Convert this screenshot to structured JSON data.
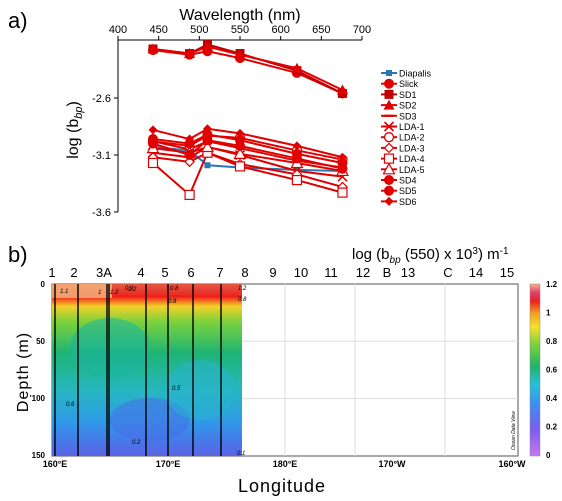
{
  "panel_labels": {
    "a": "a)",
    "b": "b)"
  },
  "chart_data": [
    {
      "type": "line",
      "panel": "a",
      "title": "",
      "xlabel": "Wavelength (nm)",
      "ylabel": "log (b",
      "ylabel_sub": "bp",
      "ylabel_suffix": ")",
      "x_axis_position": "top",
      "xlim": [
        400,
        700
      ],
      "ylim": [
        -3.6,
        -2.1
      ],
      "y_inverted_display": false,
      "xticks": [
        400,
        450,
        500,
        550,
        600,
        650,
        700
      ],
      "yticks": [
        -3.6,
        -3.1,
        -2.6
      ],
      "ytick_labels": [
        "-3.6",
        "-3.1",
        "-2.6"
      ],
      "x": [
        443,
        488,
        510,
        550,
        620,
        676
      ],
      "legend_position": "right",
      "series": [
        {
          "name": "Diapalis",
          "color": "#2e75b6",
          "marker": "square-line",
          "values": [
            -3.03,
            -3.06,
            -3.19,
            -3.21,
            -3.23,
            -3.24
          ]
        },
        {
          "name": "Slick",
          "color": "#e00000",
          "marker": "circle",
          "values": [
            -2.18,
            -2.22,
            -2.19,
            -2.25,
            -2.38,
            -2.56
          ]
        },
        {
          "name": "SD1",
          "color": "#c00000",
          "marker": "square",
          "values": [
            -2.17,
            -2.21,
            -2.13,
            -2.21,
            -2.36,
            -2.56
          ]
        },
        {
          "name": "SD2",
          "color": "#e00000",
          "marker": "triangle",
          "values": [
            -2.17,
            -2.21,
            -2.15,
            -2.22,
            -2.34,
            -2.53
          ]
        },
        {
          "name": "SD3",
          "color": "#e00000",
          "marker": "dash",
          "values": [
            -2.98,
            -3.05,
            -2.98,
            -3.04,
            -3.15,
            -3.21
          ]
        },
        {
          "name": "LDA-1",
          "color": "#e00000",
          "marker": "x",
          "values": [
            -3.08,
            -3.12,
            -3.03,
            -3.1,
            -3.24,
            -3.29
          ]
        },
        {
          "name": "LDA-2",
          "color": "#e00000",
          "marker": "circle-open",
          "values": [
            -2.98,
            -3.02,
            -2.93,
            -2.95,
            -3.06,
            -3.14
          ]
        },
        {
          "name": "LDA-3",
          "color": "#e00000",
          "marker": "diamond-open",
          "values": [
            -3.12,
            -3.16,
            -3.08,
            -3.18,
            -3.27,
            -3.38
          ]
        },
        {
          "name": "LDA-4",
          "color": "#e00000",
          "marker": "square-open",
          "values": [
            -3.17,
            -3.45,
            -3.08,
            -3.2,
            -3.32,
            -3.43
          ]
        },
        {
          "name": "LDA-5",
          "color": "#e00000",
          "marker": "triangle-open",
          "values": [
            -3.04,
            -3.08,
            -3.03,
            -3.09,
            -3.17,
            -3.24
          ]
        },
        {
          "name": "SD4",
          "color": "#e00000",
          "marker": "circle",
          "values": [
            -2.96,
            -3.0,
            -2.92,
            -2.97,
            -3.09,
            -3.17
          ]
        },
        {
          "name": "SD5",
          "color": "#e00000",
          "marker": "circle",
          "values": [
            -3.0,
            -3.1,
            -2.97,
            -3.02,
            -3.13,
            -3.22
          ]
        },
        {
          "name": "SD6",
          "color": "#e00000",
          "marker": "diamond",
          "values": [
            -2.88,
            -2.96,
            -2.87,
            -2.91,
            -3.02,
            -3.12
          ]
        }
      ]
    },
    {
      "type": "heatmap",
      "panel": "b",
      "title_main": "log (b",
      "title_sub": "bp",
      "title_rest": " (550) x 10",
      "title_sup": "3",
      "title_end": ") m",
      "title_sup2": "-1",
      "xlabel": "Longitude",
      "ylabel": "Depth (m)",
      "xlim_label": [
        "160°E",
        "160°W"
      ],
      "xticks": [
        "160°E",
        "170°E",
        "180°E",
        "170°W",
        "160°W"
      ],
      "yticks": [
        0,
        50,
        100,
        150
      ],
      "ytick_labels": [
        "0",
        "50",
        "'100",
        "150"
      ],
      "station_labels": [
        "1",
        "2",
        "3A",
        "4",
        "5",
        "6",
        "7",
        "8",
        "9",
        "10",
        "11",
        "12",
        "B",
        "13",
        "C",
        "14",
        "15"
      ],
      "colorbar": {
        "min": 0,
        "max": 1.2,
        "ticks": [
          "0",
          "0.2",
          "0.4",
          "0.6",
          "0.8",
          "1",
          "1.2"
        ]
      },
      "watermark": "Ocean Data View",
      "contour_labels": [
        "1.2",
        "1.2",
        "1.1",
        "1",
        "0.9",
        "0.8",
        "0.8",
        "0.8",
        "0.6",
        "0.5",
        "0.4",
        "0.2",
        "0.1"
      ]
    }
  ]
}
